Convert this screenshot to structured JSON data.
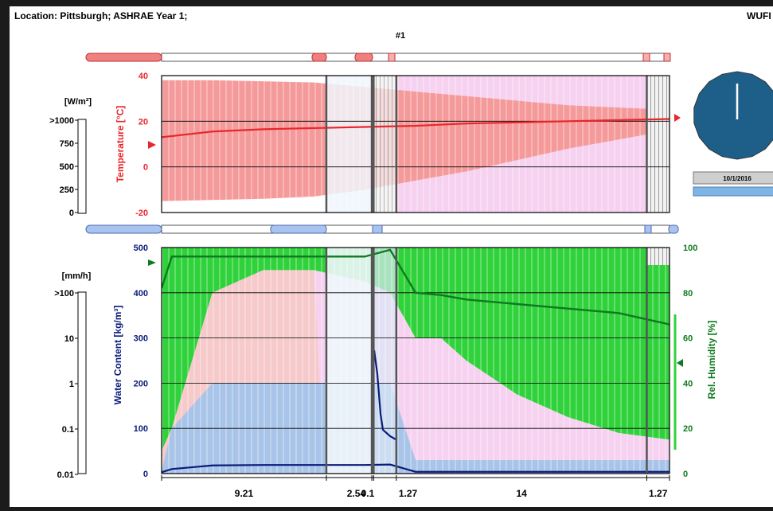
{
  "header": {
    "location": "Location: Pittsburgh; ASHRAE Year 1;",
    "app": "WUFI",
    "column_id": "#1",
    "date": "10/1/2016"
  },
  "colors": {
    "temp_red": "#e8262b",
    "temp_band": "#f59a9a",
    "temp_band_light": "#f6caca",
    "pink_region": "#f6d2f0",
    "green": "#0e7a1f",
    "green_band": "#2fd23a",
    "water_blue": "#0a1a7a",
    "water_band": "#a8c4e8",
    "clock_blue": "#1e5f8a"
  },
  "layers": [
    {
      "label": "9.21",
      "value": 9.21
    },
    {
      "label": "2.54",
      "value": 2.54
    },
    {
      "label": "0.1",
      "value": 0.1
    },
    {
      "label": "1.27",
      "value": 1.27
    },
    {
      "label": "14",
      "value": 14
    },
    {
      "label": "1.27",
      "value": 1.27
    }
  ],
  "left_scales": {
    "radiation_unit": "[W/m²]",
    "radiation_ticks": [
      ">1000",
      "750",
      "500",
      "250",
      "0"
    ],
    "rain_unit": "[mm/h]",
    "rain_ticks": [
      ">100",
      "10",
      "1",
      "0.1",
      "0.01"
    ]
  },
  "chart_data": [
    {
      "type": "area",
      "title": "",
      "ylabel": "Temperature [°C]",
      "ylim": [
        -20,
        40
      ],
      "yticks": [
        40,
        20,
        0,
        -20
      ],
      "grid": true,
      "x": [
        0,
        0.1,
        0.2,
        0.3,
        0.4,
        0.5,
        0.6,
        0.7,
        0.8,
        0.9,
        1.0
      ],
      "series": [
        {
          "role": "temperature_max",
          "values": [
            38,
            38,
            37.5,
            37,
            35,
            33,
            31,
            29,
            27,
            26,
            25
          ]
        },
        {
          "role": "temperature_min",
          "values": [
            -15,
            -14.5,
            -14,
            -13,
            -10,
            -6,
            -2,
            3,
            8,
            12,
            16
          ]
        },
        {
          "role": "temperature",
          "values": [
            13,
            15.5,
            16.5,
            17,
            17.5,
            18,
            19,
            19.5,
            20,
            20.5,
            21
          ]
        }
      ]
    },
    {
      "type": "area",
      "title": "",
      "ylabel": "Water Content [kg/m³]",
      "ylabel_right": "Rel. Humidity [%]",
      "ylim": [
        0,
        500
      ],
      "ylim_right": [
        0,
        100
      ],
      "yticks": [
        500,
        400,
        300,
        200,
        100,
        0
      ],
      "yticks_right": [
        100,
        80,
        60,
        40,
        20,
        0
      ],
      "grid": true,
      "x": [
        0,
        0.02,
        0.1,
        0.2,
        0.3,
        0.4,
        0.45,
        0.5,
        0.55,
        0.6,
        0.7,
        0.8,
        0.9,
        1.0
      ],
      "series": [
        {
          "role": "relative_humidity",
          "axis": "right",
          "values": [
            82,
            96,
            96,
            96,
            96,
            96,
            99,
            80,
            79,
            77,
            75,
            73,
            71,
            66
          ]
        },
        {
          "role": "relative_humidity_min",
          "axis": "right",
          "values": [
            10,
            20,
            80,
            90,
            90,
            85,
            80,
            60,
            60,
            50,
            35,
            25,
            18,
            15
          ]
        },
        {
          "role": "water_content",
          "values": [
            3,
            10,
            18,
            19,
            19,
            19,
            20,
            4,
            4,
            4,
            4,
            4,
            4,
            4
          ]
        },
        {
          "role": "water_content_max",
          "values": [
            5,
            100,
            200,
            200,
            200,
            200,
            200,
            30,
            30,
            30,
            30,
            30,
            30,
            30
          ]
        }
      ]
    }
  ]
}
